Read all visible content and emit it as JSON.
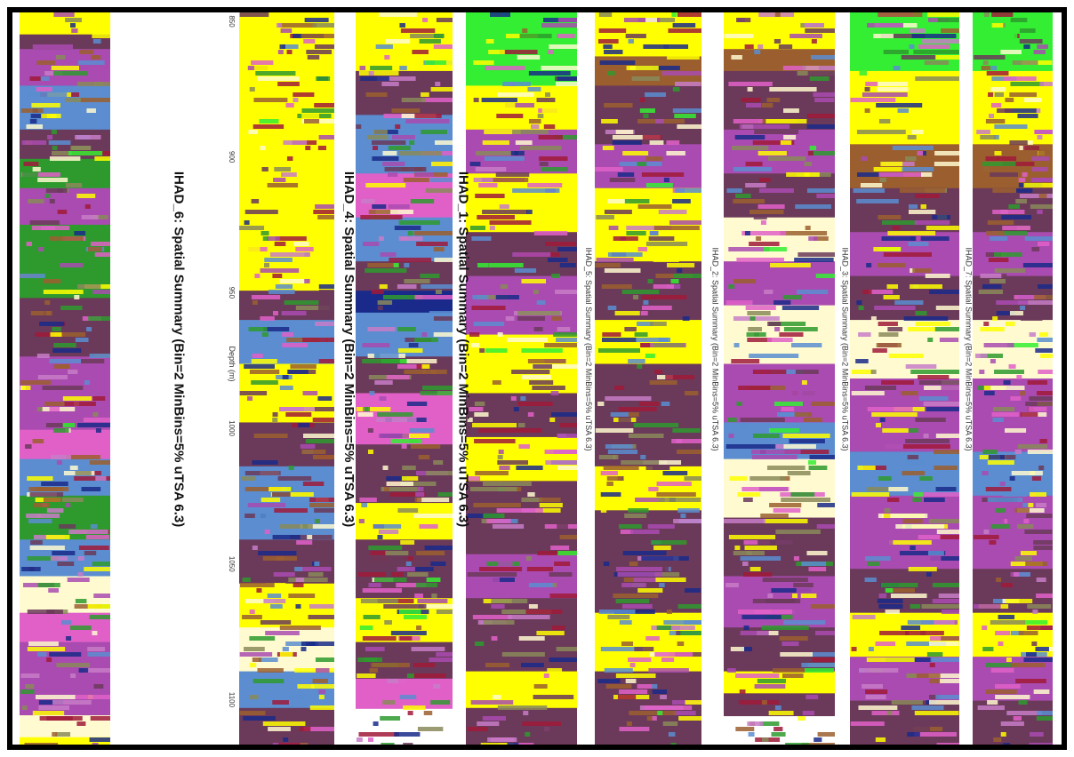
{
  "chart_data": {
    "type": "heatmap",
    "axis": {
      "label": "Depth (m)",
      "ticks": [
        "850",
        "900",
        "950",
        "1000",
        "1050",
        "1100"
      ],
      "range": [
        850,
        1110
      ]
    },
    "palette": {
      "yellow": "#FFFF00",
      "brown": "#9B5F2F",
      "plum": "#6B3A5A",
      "magenta": "#A94BB0",
      "pink": "#E060C8",
      "steelblue": "#5B8DD0",
      "green": "#2E9A2E",
      "lime": "#33EE33",
      "cream": "#FFFAD0",
      "crimson": "#A01A3A",
      "navy": "#1A2A8A",
      "olive": "#8A8A5A",
      "orchid": "#C87CC8"
    },
    "panels": [
      {
        "title": "IHAD_6: Spatial Summary (Bin=2 MinBins=5% uTSA 6.3)"
      },
      {
        "title": "IHAD_4: Spatial Summary (Bin=2 MinBins=5% uTSA 6.3)"
      },
      {
        "title": "IHAD_1: Spatial Summary (Bin=2 MinBins=5% uTSA 6.3)"
      },
      {
        "title": "IHAD_5: Spatial Summary (Bin=2 MinBins=5% uTSA 6.3)"
      },
      {
        "title": "IHAD_2: Spatial Summary (Bin=2 MinBins=5% uTSA 6.3)"
      },
      {
        "title": "IHAD_3: Spatial Summary (Bin=2 MinBins=5% uTSA 6.3)"
      },
      {
        "title": "IHAD_7: Spatial Summary (Bin=2 MinBins=5% uTSA 6.3)"
      }
    ],
    "strips": [
      {
        "segments": [
          [
            "yellow",
            0.03
          ],
          [
            "plum",
            0.02
          ],
          [
            "magenta",
            0.05
          ],
          [
            "steelblue",
            0.06
          ],
          [
            "plum",
            0.04
          ],
          [
            "green",
            0.04
          ],
          [
            "magenta",
            0.05
          ],
          [
            "green",
            0.1
          ],
          [
            "plum",
            0.08
          ],
          [
            "magenta",
            0.1
          ],
          [
            "pink",
            0.04
          ],
          [
            "steelblue",
            0.05
          ],
          [
            "green",
            0.06
          ],
          [
            "steelblue",
            0.05
          ],
          [
            "cream",
            0.05
          ],
          [
            "pink",
            0.04
          ],
          [
            "magenta",
            0.1
          ],
          [
            "cream",
            0.03
          ],
          [
            "yellow",
            0.04
          ],
          [
            "magenta",
            0.03
          ]
        ]
      },
      {
        "segments": [
          [
            "yellow",
            0.38
          ],
          [
            "plum",
            0.04
          ],
          [
            "steelblue",
            0.06
          ],
          [
            "yellow",
            0.08
          ],
          [
            "plum",
            0.06
          ],
          [
            "steelblue",
            0.1
          ],
          [
            "plum",
            0.06
          ],
          [
            "yellow",
            0.06
          ],
          [
            "cream",
            0.06
          ],
          [
            "steelblue",
            0.05
          ],
          [
            "plum",
            0.05
          ]
        ]
      },
      {
        "segments": [
          [
            "yellow",
            0.08
          ],
          [
            "plum",
            0.06
          ],
          [
            "steelblue",
            0.08
          ],
          [
            "pink",
            0.06
          ],
          [
            "steelblue",
            0.06
          ],
          [
            "plum",
            0.04
          ],
          [
            "navy",
            0.03
          ],
          [
            "steelblue",
            0.06
          ],
          [
            "plum",
            0.05
          ],
          [
            "pink",
            0.07
          ],
          [
            "plum",
            0.08
          ],
          [
            "yellow",
            0.05
          ],
          [
            "plum",
            0.08
          ],
          [
            "yellow",
            0.06
          ],
          [
            "plum",
            0.05
          ],
          [
            "pink",
            0.04
          ]
        ]
      },
      {
        "segments": [
          [
            "lime",
            0.1
          ],
          [
            "yellow",
            0.06
          ],
          [
            "magenta",
            0.06
          ],
          [
            "yellow",
            0.08
          ],
          [
            "plum",
            0.06
          ],
          [
            "magenta",
            0.08
          ],
          [
            "yellow",
            0.08
          ],
          [
            "plum",
            0.06
          ],
          [
            "yellow",
            0.06
          ],
          [
            "plum",
            0.1
          ],
          [
            "magenta",
            0.06
          ],
          [
            "plum",
            0.1
          ],
          [
            "yellow",
            0.05
          ],
          [
            "plum",
            0.05
          ]
        ]
      },
      {
        "segments": [
          [
            "yellow",
            0.06
          ],
          [
            "brown",
            0.04
          ],
          [
            "plum",
            0.08
          ],
          [
            "magenta",
            0.06
          ],
          [
            "yellow",
            0.1
          ],
          [
            "plum",
            0.08
          ],
          [
            "yellow",
            0.06
          ],
          [
            "plum",
            0.14
          ],
          [
            "yellow",
            0.06
          ],
          [
            "plum",
            0.14
          ],
          [
            "yellow",
            0.08
          ],
          [
            "plum",
            0.1
          ]
        ]
      },
      {
        "segments": [
          [
            "yellow",
            0.05
          ],
          [
            "brown",
            0.03
          ],
          [
            "plum",
            0.08
          ],
          [
            "magenta",
            0.06
          ],
          [
            "plum",
            0.06
          ],
          [
            "cream",
            0.06
          ],
          [
            "magenta",
            0.06
          ],
          [
            "cream",
            0.08
          ],
          [
            "magenta",
            0.08
          ],
          [
            "steelblue",
            0.05
          ],
          [
            "cream",
            0.08
          ],
          [
            "plum",
            0.08
          ],
          [
            "magenta",
            0.07
          ],
          [
            "plum",
            0.06
          ],
          [
            "yellow",
            0.03
          ],
          [
            "plum",
            0.03
          ]
        ]
      },
      {
        "segments": [
          [
            "lime",
            0.08
          ],
          [
            "yellow",
            0.1
          ],
          [
            "brown",
            0.06
          ],
          [
            "plum",
            0.06
          ],
          [
            "magenta",
            0.06
          ],
          [
            "plum",
            0.06
          ],
          [
            "cream",
            0.08
          ],
          [
            "magenta",
            0.1
          ],
          [
            "steelblue",
            0.06
          ],
          [
            "magenta",
            0.1
          ],
          [
            "plum",
            0.06
          ],
          [
            "yellow",
            0.06
          ],
          [
            "magenta",
            0.06
          ],
          [
            "plum",
            0.06
          ]
        ]
      }
    ]
  }
}
